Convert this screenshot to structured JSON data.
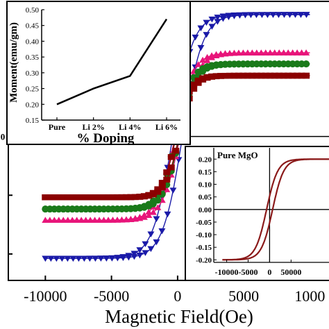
{
  "chart_data": [
    {
      "type": "scatter",
      "xlabel": "Magnetic Field(Oe)",
      "ylabel": "",
      "xticks": [
        "-10000",
        "-5000",
        "0",
        "5000",
        "1000"
      ],
      "yticks_left": [
        "",
        "0",
        "",
        ""
      ],
      "xlim": [
        -12800,
        11500
      ],
      "ylim": [
        -0.49,
        0.46
      ],
      "series": [
        {
          "marker": "triangle-down",
          "color": "#1a1aa8",
          "ms": 0.415,
          "hc": 370,
          "k": 1500
        },
        {
          "marker": "triangle-up",
          "color": "#e8157a",
          "ms": 0.285,
          "hc": 190,
          "k": 1350
        },
        {
          "marker": "circle",
          "color": "#1a7a1a",
          "ms": 0.247,
          "hc": 140,
          "k": 1200
        },
        {
          "marker": "square",
          "color": "#8b0000",
          "ms": 0.207,
          "hc": 110,
          "k": 1050
        }
      ],
      "colors": {
        "axis": "#000000",
        "background": "#ffffff"
      }
    },
    {
      "type": "line",
      "xlabel": "% Doping",
      "ylabel": "Moment(emu/gm)",
      "categories": [
        "Pure",
        "Li 2%",
        "Li 4%",
        "Li 6%"
      ],
      "values": [
        0.2,
        0.25,
        0.29,
        0.47
      ],
      "yticks": [
        "0.15",
        "0.20",
        "0.25",
        "0.30",
        "0.35",
        "0.40",
        "0.45",
        "0.50"
      ],
      "ylim": [
        0.15,
        0.5
      ],
      "color": "#000000"
    },
    {
      "type": "line",
      "title": "Pure MgO",
      "xticks": [
        "-10000",
        "-5000",
        "0",
        "50000"
      ],
      "yticks": [
        "0.20",
        "0.15",
        "0.10",
        "0.05",
        "0.00",
        "-0.05",
        "-0.10",
        "-0.15",
        "-0.20"
      ],
      "ylim": [
        -0.21,
        0.22
      ],
      "xlim": [
        -13000,
        14000
      ],
      "series": [
        {
          "name": "",
          "ms": 0.2,
          "hc": 700,
          "k": 2600,
          "color": "#8b1a1a"
        }
      ]
    }
  ]
}
